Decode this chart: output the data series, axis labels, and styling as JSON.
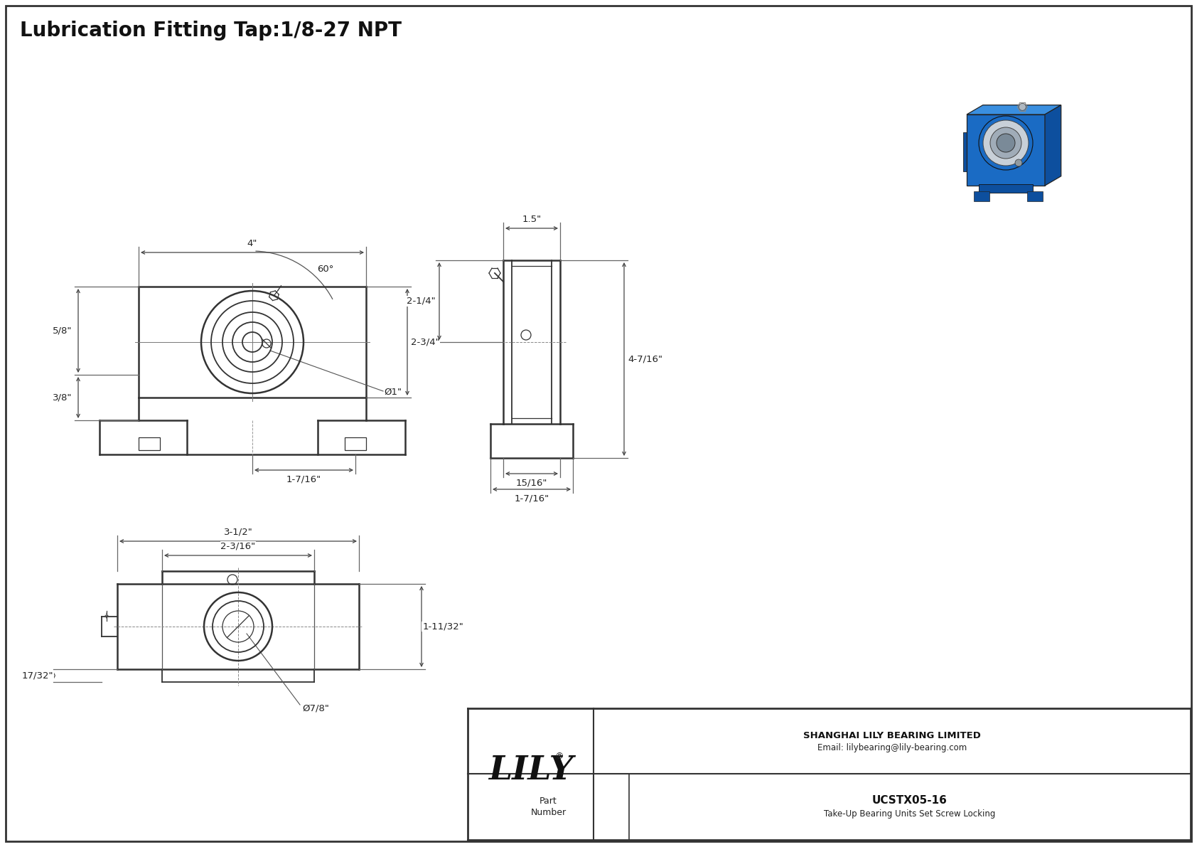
{
  "bg_color": "#ffffff",
  "border_color": "#333333",
  "line_color": "#333333",
  "dim_color": "#444444",
  "title_text": "Lubrication Fitting Tap:1/8-27 NPT",
  "title_fontsize": 20,
  "company": "SHANGHAI LILY BEARING LIMITED",
  "email": "Email: lilybearing@lily-bearing.com",
  "part_label": "Part\nNumber",
  "part_number": "UCSTX05-16",
  "part_desc": "Take-Up Bearing Units Set Screw Locking",
  "lily_text": "LILY",
  "lily_reg": "®",
  "dims_front": {
    "width_4in": "4\"",
    "height_58": "5/8\"",
    "height_38": "3/8\"",
    "width_1716": "1-7/16\"",
    "height_234": "2-3/4\"",
    "dia_1": "Ø1\"",
    "angle_60": "60°"
  },
  "dims_side": {
    "width_15": "1.5\"",
    "height_214": "2-1/4\"",
    "height_4716": "4-7/16\"",
    "width_1516": "15/16\"",
    "width_1716": "1-7/16\""
  },
  "dims_bottom": {
    "width_312": "3-1/2\"",
    "width_2316": "2-3/16\"",
    "height_11132": "1-11/32\"",
    "height_1732": "17/32\"",
    "dia_78": "Ø7/8\""
  }
}
